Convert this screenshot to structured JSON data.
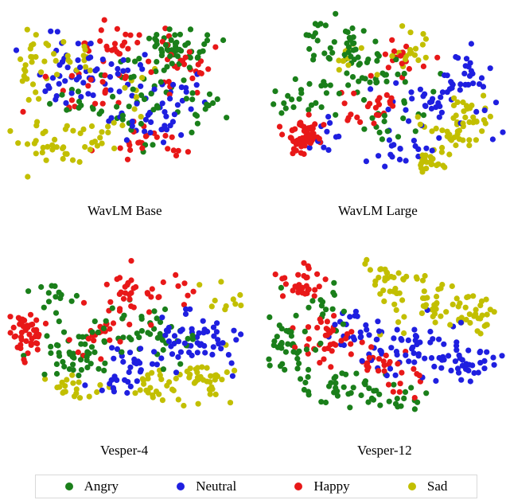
{
  "chart_data": [
    {
      "type": "scatter",
      "title": "WavLM Base",
      "series": [
        {
          "name": "Angry",
          "color": "#1a7f1a",
          "clusters": [
            [
              75,
              22,
              12,
              10,
              40
            ],
            [
              62,
              35,
              18,
              14,
              25
            ],
            [
              55,
              58,
              16,
              14,
              20
            ],
            [
              82,
              60,
              10,
              14,
              15
            ],
            [
              30,
              52,
              14,
              14,
              12
            ]
          ]
        },
        {
          "name": "Neutral",
          "color": "#1f1fe0",
          "clusters": [
            [
              40,
              40,
              25,
              18,
              45
            ],
            [
              60,
              65,
              18,
              15,
              30
            ],
            [
              20,
              30,
              12,
              14,
              15
            ],
            [
              75,
              45,
              12,
              14,
              15
            ]
          ]
        },
        {
          "name": "Happy",
          "color": "#e81818",
          "clusters": [
            [
              48,
              22,
              15,
              12,
              30
            ],
            [
              80,
              35,
              12,
              14,
              25
            ],
            [
              62,
              75,
              15,
              10,
              25
            ],
            [
              35,
              45,
              18,
              16,
              20
            ]
          ]
        },
        {
          "name": "Sad",
          "color": "#c2bf00",
          "clusters": [
            [
              12,
              30,
              8,
              14,
              25
            ],
            [
              15,
              75,
              12,
              10,
              25
            ],
            [
              35,
              72,
              18,
              12,
              20
            ],
            [
              28,
              28,
              12,
              12,
              15
            ],
            [
              55,
              48,
              10,
              12,
              10
            ]
          ]
        }
      ]
    },
    {
      "type": "scatter",
      "title": "WavLM Large",
      "series": [
        {
          "name": "Angry",
          "color": "#1a7f1a",
          "clusters": [
            [
              30,
              22,
              14,
              14,
              45
            ],
            [
              45,
              42,
              16,
              18,
              30
            ],
            [
              15,
              52,
              10,
              12,
              20
            ],
            [
              50,
              70,
              15,
              12,
              15
            ]
          ]
        },
        {
          "name": "Neutral",
          "color": "#1f1fe0",
          "clusters": [
            [
              70,
              55,
              18,
              20,
              40
            ],
            [
              82,
              42,
              10,
              14,
              25
            ],
            [
              55,
              85,
              15,
              8,
              15
            ],
            [
              25,
              75,
              8,
              10,
              12
            ]
          ]
        },
        {
          "name": "Happy",
          "color": "#e81818",
          "clusters": [
            [
              15,
              75,
              7,
              9,
              60
            ],
            [
              45,
              55,
              12,
              14,
              25
            ],
            [
              60,
              30,
              12,
              12,
              15
            ]
          ]
        },
        {
          "name": "Sad",
          "color": "#c2bf00",
          "clusters": [
            [
              78,
              72,
              12,
              12,
              35
            ],
            [
              68,
              90,
              10,
              6,
              25
            ],
            [
              58,
              25,
              12,
              10,
              20
            ],
            [
              88,
              60,
              8,
              10,
              15
            ],
            [
              35,
              32,
              10,
              10,
              10
            ]
          ]
        }
      ]
    },
    {
      "type": "scatter",
      "title": "Vesper-4",
      "series": [
        {
          "name": "Angry",
          "color": "#1a7f1a",
          "clusters": [
            [
              28,
              60,
              14,
              14,
              50
            ],
            [
              55,
              45,
              12,
              14,
              25
            ],
            [
              20,
              30,
              12,
              12,
              15
            ],
            [
              70,
              55,
              10,
              12,
              15
            ]
          ]
        },
        {
          "name": "Neutral",
          "color": "#1f1fe0",
          "clusters": [
            [
              75,
              52,
              14,
              16,
              40
            ],
            [
              55,
              65,
              12,
              12,
              20
            ],
            [
              90,
              48,
              8,
              10,
              15
            ],
            [
              45,
              80,
              10,
              8,
              15
            ]
          ]
        },
        {
          "name": "Happy",
          "color": "#e81818",
          "clusters": [
            [
              8,
              50,
              6,
              12,
              45
            ],
            [
              50,
              25,
              10,
              14,
              30
            ],
            [
              38,
              48,
              10,
              12,
              20
            ],
            [
              70,
              25,
              10,
              10,
              10
            ]
          ]
        },
        {
          "name": "Sad",
          "color": "#c2bf00",
          "clusters": [
            [
              82,
              72,
              12,
              12,
              35
            ],
            [
              62,
              78,
              12,
              10,
              25
            ],
            [
              25,
              80,
              12,
              8,
              20
            ],
            [
              90,
              30,
              6,
              10,
              10
            ]
          ]
        }
      ]
    },
    {
      "type": "scatter",
      "title": "Vesper-12",
      "series": [
        {
          "name": "Angry",
          "color": "#1a7f1a",
          "clusters": [
            [
              10,
              55,
              8,
              20,
              40
            ],
            [
              30,
              80,
              15,
              10,
              30
            ],
            [
              55,
              85,
              15,
              8,
              20
            ],
            [
              25,
              35,
              10,
              12,
              15
            ]
          ]
        },
        {
          "name": "Neutral",
          "color": "#1f1fe0",
          "clusters": [
            [
              55,
              60,
              20,
              12,
              45
            ],
            [
              85,
              65,
              10,
              10,
              30
            ],
            [
              35,
              45,
              12,
              12,
              20
            ],
            [
              70,
              50,
              12,
              10,
              15
            ]
          ]
        },
        {
          "name": "Happy",
          "color": "#e81818",
          "clusters": [
            [
              15,
              20,
              8,
              10,
              30
            ],
            [
              25,
              50,
              12,
              18,
              35
            ],
            [
              45,
              65,
              10,
              10,
              20
            ],
            [
              60,
              75,
              8,
              8,
              10
            ]
          ]
        },
        {
          "name": "Sad",
          "color": "#c2bf00",
          "clusters": [
            [
              70,
              30,
              20,
              12,
              55
            ],
            [
              50,
              15,
              12,
              8,
              25
            ],
            [
              90,
              40,
              8,
              10,
              20
            ]
          ]
        }
      ]
    }
  ],
  "legend": {
    "items": [
      {
        "name": "Angry",
        "color": "#1a7f1a"
      },
      {
        "name": "Neutral",
        "color": "#1f1fe0"
      },
      {
        "name": "Happy",
        "color": "#e81818"
      },
      {
        "name": "Sad",
        "color": "#c2bf00"
      }
    ]
  }
}
